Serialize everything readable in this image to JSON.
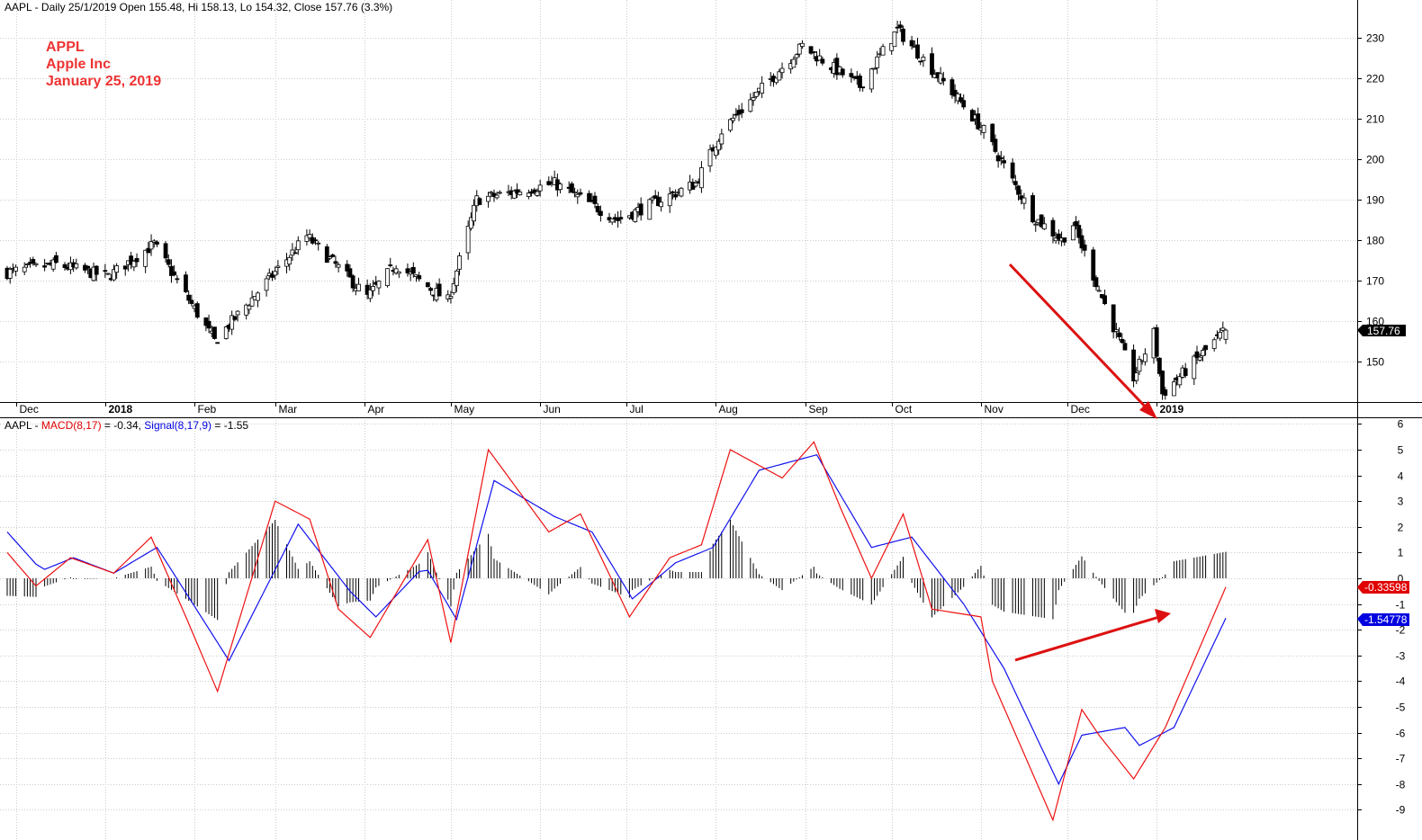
{
  "header": {
    "price_info": "AAPL - Daily 25/1/2019 Open 155.48, Hi 158.13, Lo 154.32, Close 157.76 (3.3%)",
    "macd_prefix": "AAPL - ",
    "macd_label": "MACD(8,17)",
    "macd_value": " = -0.34, ",
    "signal_label": "Signal(8,17,9)",
    "signal_value": " = -1.55"
  },
  "annotation": {
    "line1": "APPL",
    "line2": "Apple Inc",
    "line3": "January 25, 2019"
  },
  "colors": {
    "macd": "#ee1111",
    "signal": "#1111ee",
    "annotation": "#ee3333",
    "arrow": "#dd1111",
    "grid": "#cccccc",
    "candle": "#000000"
  },
  "price_badge": "157.76",
  "macd_badge": "-0.33598",
  "signal_badge": "-1.54778",
  "month_labels": [
    "Dec",
    "2018",
    "Feb",
    "Mar",
    "Apr",
    "May",
    "Jun",
    "Jul",
    "Aug",
    "Sep",
    "Oct",
    "Nov",
    "Dec",
    "2019"
  ],
  "chart_data": [
    {
      "type": "candlestick",
      "title": "AAPL - Daily",
      "x_range": [
        "2017-11-28",
        "2019-01-25"
      ],
      "y_ticks": [
        150,
        160,
        170,
        180,
        190,
        200,
        210,
        220,
        230
      ],
      "ylim": [
        141,
        235
      ],
      "grid": true,
      "close_anchors": [
        {
          "date": "2017-11-28",
          "close": 172
        },
        {
          "date": "2017-12-15",
          "close": 174
        },
        {
          "date": "2018-01-02",
          "close": 171
        },
        {
          "date": "2018-01-18",
          "close": 179
        },
        {
          "date": "2018-02-08",
          "close": 155
        },
        {
          "date": "2018-03-12",
          "close": 181
        },
        {
          "date": "2018-04-02",
          "close": 166
        },
        {
          "date": "2018-04-12",
          "close": 174
        },
        {
          "date": "2018-04-30",
          "close": 165
        },
        {
          "date": "2018-05-10",
          "close": 190
        },
        {
          "date": "2018-06-06",
          "close": 194
        },
        {
          "date": "2018-06-28",
          "close": 185
        },
        {
          "date": "2018-07-25",
          "close": 194
        },
        {
          "date": "2018-08-03",
          "close": 207
        },
        {
          "date": "2018-08-31",
          "close": 228
        },
        {
          "date": "2018-09-20",
          "close": 218
        },
        {
          "date": "2018-10-03",
          "close": 232
        },
        {
          "date": "2018-10-24",
          "close": 215
        },
        {
          "date": "2018-11-02",
          "close": 207
        },
        {
          "date": "2018-11-19",
          "close": 186
        },
        {
          "date": "2018-11-29",
          "close": 180
        },
        {
          "date": "2018-12-03",
          "close": 184
        },
        {
          "date": "2018-12-24",
          "close": 146
        },
        {
          "date": "2018-12-31",
          "close": 157
        },
        {
          "date": "2019-01-03",
          "close": 142
        },
        {
          "date": "2019-01-25",
          "close": 157.76
        }
      ],
      "last": {
        "date": "2019-01-25",
        "open": 155.48,
        "high": 158.13,
        "low": 154.32,
        "close": 157.76
      }
    },
    {
      "type": "line",
      "title": "MACD(8,17), Signal(8,17,9)",
      "y_ticks": [
        6,
        5,
        4,
        3,
        2,
        1,
        0,
        -1,
        -2,
        -3,
        -4,
        -5,
        -6,
        -7,
        -8,
        -9
      ],
      "ylim": [
        -10,
        6.5
      ],
      "grid": true,
      "series": [
        {
          "name": "MACD(8,17)",
          "last": -0.34,
          "points": [
            {
              "date": "2017-11-28",
              "value": 1.0
            },
            {
              "date": "2017-12-08",
              "value": -0.3
            },
            {
              "date": "2017-12-20",
              "value": 0.8
            },
            {
              "date": "2018-01-04",
              "value": 0.2
            },
            {
              "date": "2018-01-17",
              "value": 1.6
            },
            {
              "date": "2018-01-29",
              "value": -1.5
            },
            {
              "date": "2018-02-09",
              "value": -4.4
            },
            {
              "date": "2018-03-01",
              "value": 3.0
            },
            {
              "date": "2018-03-13",
              "value": 2.3
            },
            {
              "date": "2018-03-23",
              "value": -1.2
            },
            {
              "date": "2018-04-03",
              "value": -2.3
            },
            {
              "date": "2018-04-23",
              "value": 1.5
            },
            {
              "date": "2018-05-01",
              "value": -2.5
            },
            {
              "date": "2018-05-14",
              "value": 5.0
            },
            {
              "date": "2018-06-04",
              "value": 1.8
            },
            {
              "date": "2018-06-15",
              "value": 2.5
            },
            {
              "date": "2018-07-02",
              "value": -1.5
            },
            {
              "date": "2018-07-16",
              "value": 0.8
            },
            {
              "date": "2018-07-27",
              "value": 1.3
            },
            {
              "date": "2018-08-06",
              "value": 5.0
            },
            {
              "date": "2018-08-24",
              "value": 3.9
            },
            {
              "date": "2018-09-04",
              "value": 5.3
            },
            {
              "date": "2018-09-13",
              "value": 2.8
            },
            {
              "date": "2018-09-24",
              "value": 0.0
            },
            {
              "date": "2018-10-05",
              "value": 2.5
            },
            {
              "date": "2018-10-15",
              "value": -1.2
            },
            {
              "date": "2018-11-01",
              "value": -1.5
            },
            {
              "date": "2018-11-05",
              "value": -4.0
            },
            {
              "date": "2018-11-26",
              "value": -9.4
            },
            {
              "date": "2018-12-06",
              "value": -5.1
            },
            {
              "date": "2018-12-12",
              "value": -6.1
            },
            {
              "date": "2018-12-24",
              "value": -7.8
            },
            {
              "date": "2019-01-04",
              "value": -5.8
            },
            {
              "date": "2019-01-25",
              "value": -0.34
            }
          ]
        },
        {
          "name": "Signal(8,17,9)",
          "last": -1.55,
          "points": [
            {
              "date": "2017-11-28",
              "value": 1.8
            },
            {
              "date": "2017-12-10",
              "value": 0.3
            },
            {
              "date": "2017-12-21",
              "value": 0.8
            },
            {
              "date": "2018-01-04",
              "value": 0.2
            },
            {
              "date": "2018-01-19",
              "value": 1.2
            },
            {
              "date": "2018-02-13",
              "value": -3.2
            },
            {
              "date": "2018-03-09",
              "value": 2.1
            },
            {
              "date": "2018-03-27",
              "value": -0.5
            },
            {
              "date": "2018-04-05",
              "value": -1.5
            },
            {
              "date": "2018-04-22",
              "value": 0.5
            },
            {
              "date": "2018-05-03",
              "value": -1.6
            },
            {
              "date": "2018-05-16",
              "value": 3.8
            },
            {
              "date": "2018-06-06",
              "value": 2.4
            },
            {
              "date": "2018-06-19",
              "value": 1.8
            },
            {
              "date": "2018-07-03",
              "value": -0.8
            },
            {
              "date": "2018-07-18",
              "value": 0.6
            },
            {
              "date": "2018-07-31",
              "value": 1.2
            },
            {
              "date": "2018-08-16",
              "value": 4.2
            },
            {
              "date": "2018-09-05",
              "value": 4.8
            },
            {
              "date": "2018-09-24",
              "value": 1.2
            },
            {
              "date": "2018-10-08",
              "value": 1.6
            },
            {
              "date": "2018-10-26",
              "value": -1.0
            },
            {
              "date": "2018-11-09",
              "value": -3.5
            },
            {
              "date": "2018-11-28",
              "value": -8.0
            },
            {
              "date": "2018-12-06",
              "value": -6.1
            },
            {
              "date": "2018-12-21",
              "value": -5.8
            },
            {
              "date": "2018-12-26",
              "value": -6.5
            },
            {
              "date": "2019-01-07",
              "value": -5.8
            },
            {
              "date": "2019-01-25",
              "value": -1.55
            }
          ]
        },
        {
          "name": "Histogram",
          "description": "MACD minus Signal",
          "style": "bars"
        }
      ]
    }
  ]
}
